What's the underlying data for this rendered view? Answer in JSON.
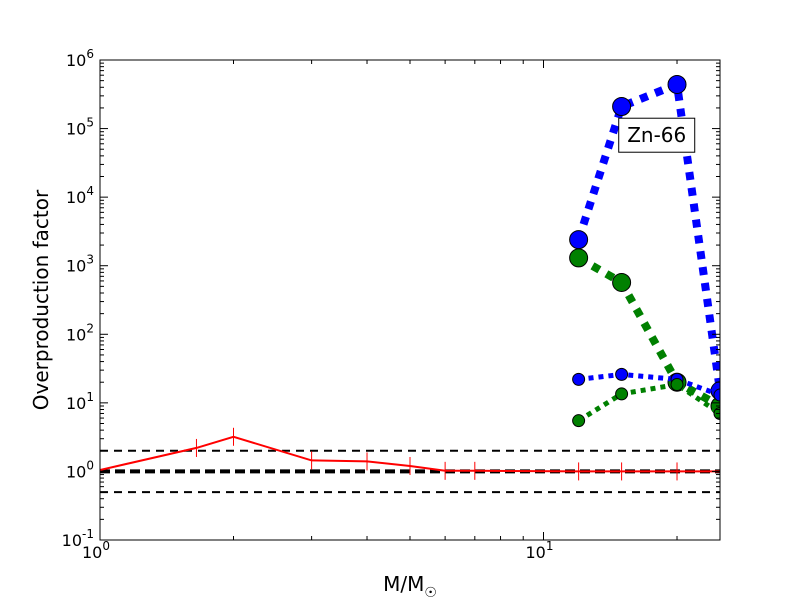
{
  "chart_data": {
    "type": "line",
    "xscale": "log",
    "yscale": "log",
    "xlim": [
      1,
      25
    ],
    "ylim": [
      0.1,
      1000000
    ],
    "xlabel": "M/M",
    "xlabel_symbol": "☉",
    "ylabel": "Overproduction factor",
    "grid": false,
    "annotation": {
      "text": "Zn-66",
      "x": 18,
      "y": 80000
    },
    "x_tick_labels": [
      {
        "value": 1,
        "base": "10",
        "exp": "0"
      },
      {
        "value": 10,
        "base": "10",
        "exp": "1"
      }
    ],
    "y_tick_labels": [
      {
        "value": 0.1,
        "base": "10",
        "exp": "-1"
      },
      {
        "value": 1,
        "base": "10",
        "exp": "0"
      },
      {
        "value": 10,
        "base": "10",
        "exp": "1"
      },
      {
        "value": 100,
        "base": "10",
        "exp": "2"
      },
      {
        "value": 1000,
        "base": "10",
        "exp": "3"
      },
      {
        "value": 10000,
        "base": "10",
        "exp": "4"
      },
      {
        "value": 100000,
        "base": "10",
        "exp": "5"
      },
      {
        "value": 1000000,
        "base": "10",
        "exp": "6"
      }
    ],
    "reference_lines": [
      {
        "y": 2.0,
        "style": "dashed",
        "weight": "thin"
      },
      {
        "y": 1.0,
        "style": "dashed",
        "weight": "thick"
      },
      {
        "y": 0.5,
        "style": "dashed",
        "weight": "thin"
      }
    ],
    "series": [
      {
        "color": "#ff0000",
        "style": "solid",
        "marker": "|",
        "x": [
          1.0,
          1.65,
          2.0,
          3.0,
          4.0,
          5.0,
          6.0,
          7.0,
          12.0,
          15.0,
          20.0,
          25.0
        ],
        "y": [
          1.05,
          2.2,
          3.2,
          1.45,
          1.4,
          1.2,
          1.02,
          1.02,
          1.0,
          1.0,
          1.0,
          1.0
        ]
      },
      {
        "color": "#0000ff",
        "style": "dotted",
        "weight": "thick",
        "marker": "large-circle",
        "x": [
          12,
          15,
          20,
          25
        ],
        "y": [
          2400,
          210000,
          440000,
          15
        ]
      },
      {
        "color": "#008000",
        "style": "dotted",
        "weight": "thick",
        "marker": "large-circle",
        "x": [
          12,
          15,
          20,
          25
        ],
        "y": [
          1300,
          570,
          20,
          9
        ]
      },
      {
        "color": "#0000ff",
        "style": "dotted",
        "weight": "thin",
        "marker": "small-circle",
        "x": [
          12,
          15,
          20,
          25
        ],
        "y": [
          22,
          26,
          22,
          13
        ]
      },
      {
        "color": "#008000",
        "style": "dotted",
        "weight": "thin",
        "marker": "small-circle",
        "x": [
          12,
          15,
          20,
          25
        ],
        "y": [
          5.5,
          13.5,
          18.5,
          7
        ]
      }
    ]
  }
}
